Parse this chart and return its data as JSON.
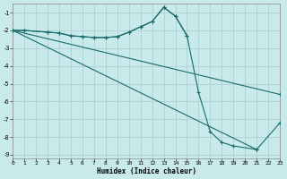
{
  "xlabel": "Humidex (Indice chaleur)",
  "bg_color": "#c8eaea",
  "grid_color": "#aed0d0",
  "line_color": "#1a6b6b",
  "xlim": [
    0,
    23
  ],
  "ylim": [
    -9.2,
    -0.5
  ],
  "yticks": [
    -9,
    -8,
    -7,
    -6,
    -5,
    -4,
    -3,
    -2,
    -1
  ],
  "xticks": [
    0,
    1,
    2,
    3,
    4,
    5,
    6,
    7,
    8,
    9,
    10,
    11,
    12,
    13,
    14,
    15,
    16,
    17,
    18,
    19,
    20,
    21,
    22,
    23
  ],
  "line1_x": [
    0,
    1,
    3,
    4,
    5,
    6,
    7,
    8,
    9,
    10,
    11,
    12,
    13,
    14,
    15
  ],
  "line1_y": [
    -2,
    -2,
    -2.1,
    -2.15,
    -2.3,
    -2.35,
    -2.4,
    -2.4,
    -2.35,
    -2.1,
    -1.8,
    -1.5,
    -0.7,
    -1.2,
    -2.3
  ],
  "line2_x": [
    0,
    1,
    3,
    4,
    5,
    6,
    7,
    8,
    9,
    10,
    11,
    12,
    13,
    14,
    15,
    16,
    17,
    18,
    19,
    21
  ],
  "line2_y": [
    -2,
    -2,
    -2.1,
    -2.15,
    -2.3,
    -2.35,
    -2.4,
    -2.4,
    -2.35,
    -2.1,
    -1.8,
    -1.5,
    -0.7,
    -1.2,
    -2.3,
    -5.5,
    -7.7,
    -8.3,
    -8.5,
    -8.7
  ],
  "line3_x": [
    0,
    23
  ],
  "line3_y": [
    -2,
    -5.6
  ],
  "line4_x": [
    0,
    21,
    23
  ],
  "line4_y": [
    -2,
    -8.7,
    -7.2
  ]
}
